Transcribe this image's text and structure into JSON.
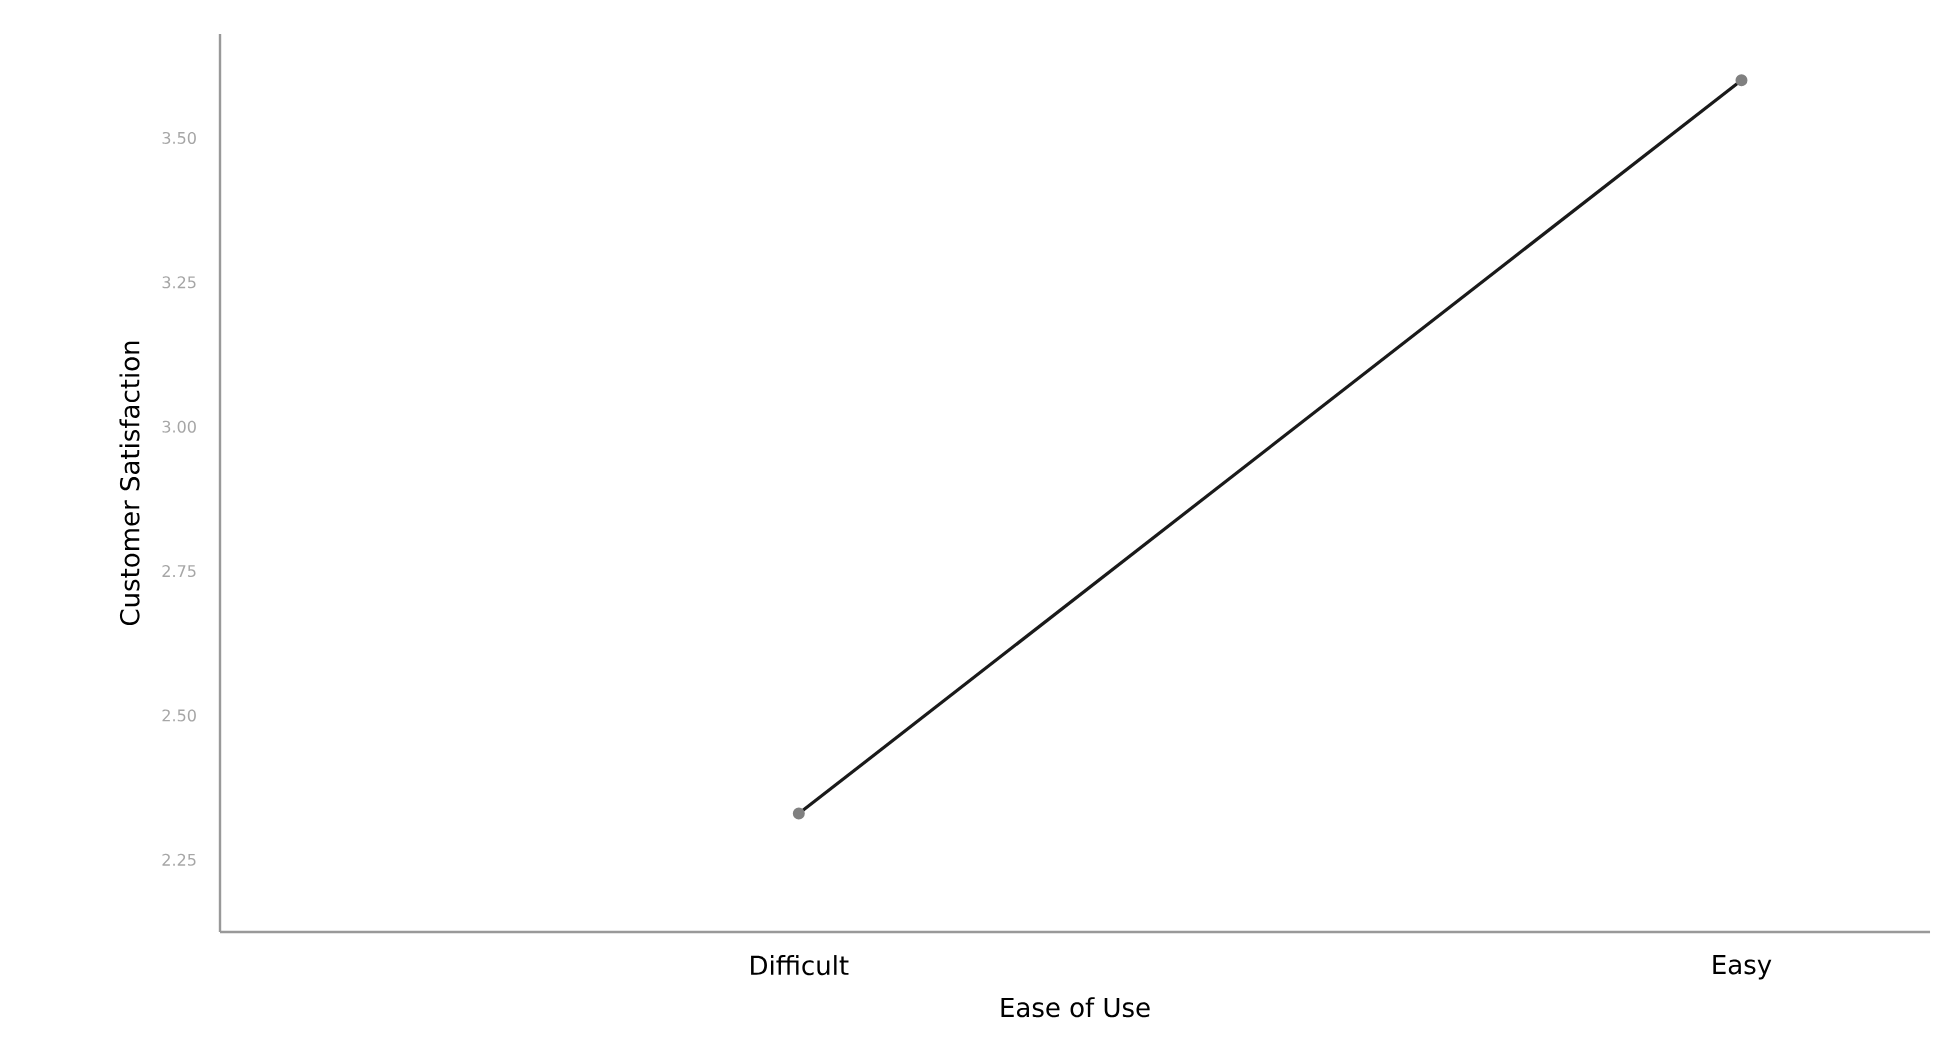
{
  "chart_data": {
    "type": "line",
    "xlabel": "Ease of Use",
    "ylabel": "Customer Satisfaction",
    "categories": [
      "Difficult",
      "Easy"
    ],
    "series": [
      {
        "color": "#1a1a1a",
        "values": [
          2.33,
          3.6
        ]
      }
    ],
    "ylim": [
      2.125,
      3.68
    ],
    "yticks": [
      {
        "value": 2.25,
        "label": "2.25"
      },
      {
        "value": 2.5,
        "label": "2.50"
      },
      {
        "value": 2.75,
        "label": "2.75"
      },
      {
        "value": 3.0,
        "label": "3.00"
      },
      {
        "value": 3.25,
        "label": "3.25"
      },
      {
        "value": 3.5,
        "label": "3.50"
      }
    ],
    "marker": "circle",
    "line_style": "solid",
    "grid": false
  }
}
